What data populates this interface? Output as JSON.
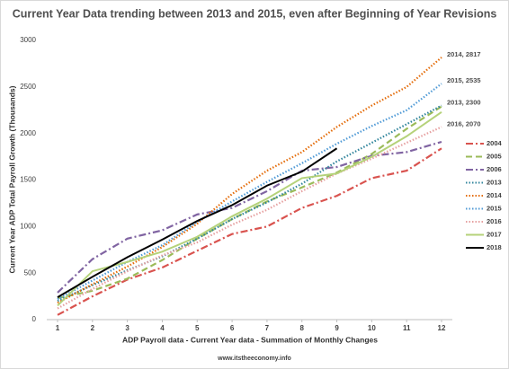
{
  "chart_data": {
    "type": "line",
    "title": "Current Year Data trending between  2013 and 2015, even after Beginning of Year Revisions",
    "ylabel": "Current Year ADP Total Payroll Growth (Thousands)",
    "xlabel": "ADP Payroll data - Current Year data - Summation of Monthly Changes",
    "footer": "www.itstheeconomy.info",
    "x": [
      1,
      2,
      3,
      4,
      5,
      6,
      7,
      8,
      9,
      10,
      11,
      12
    ],
    "xlim": [
      1,
      12
    ],
    "xticks": [
      1,
      2,
      3,
      4,
      5,
      6,
      7,
      8,
      9,
      10,
      11,
      12
    ],
    "ylim": [
      0,
      3000
    ],
    "yticks": [
      0,
      500,
      1000,
      1500,
      2000,
      2500,
      3000
    ],
    "legend": "right",
    "series": [
      {
        "name": "2004",
        "color": "#d9534f",
        "dash": "dashdot",
        "values": [
          50,
          250,
          430,
          560,
          740,
          920,
          1000,
          1200,
          1330,
          1520,
          1600,
          1840
        ]
      },
      {
        "name": "2005",
        "color": "#9bbb59",
        "dash": "dash",
        "values": [
          230,
          310,
          440,
          640,
          870,
          1080,
          1270,
          1420,
          1580,
          1780,
          2050,
          2290
        ]
      },
      {
        "name": "2006",
        "color": "#8064a2",
        "dash": "dashdot",
        "values": [
          290,
          650,
          870,
          960,
          1130,
          1200,
          1380,
          1600,
          1640,
          1760,
          1800,
          1910
        ]
      },
      {
        "name": "2013",
        "color": "#31859c",
        "dash": "dot",
        "label": "2013, 2300",
        "values": [
          200,
          370,
          530,
          680,
          870,
          1080,
          1260,
          1460,
          1700,
          1900,
          2100,
          2300
        ]
      },
      {
        "name": "2014",
        "color": "#e46c0a",
        "dash": "dot",
        "label": "2014, 2817",
        "values": [
          180,
          380,
          570,
          780,
          1030,
          1350,
          1600,
          1800,
          2070,
          2300,
          2500,
          2817
        ]
      },
      {
        "name": "2015",
        "color": "#4f9ad6",
        "dash": "dot",
        "label": "2015, 2535",
        "values": [
          220,
          420,
          620,
          800,
          1050,
          1270,
          1480,
          1680,
          1890,
          2080,
          2250,
          2535
        ]
      },
      {
        "name": "2016",
        "color": "#e6a0a0",
        "dash": "dot",
        "label": "2016, 2070",
        "values": [
          120,
          330,
          520,
          690,
          830,
          1020,
          1180,
          1380,
          1570,
          1730,
          1900,
          2070
        ]
      },
      {
        "name": "2017",
        "color": "#b5d27a",
        "dash": "solid",
        "values": [
          150,
          520,
          620,
          730,
          890,
          1110,
          1300,
          1520,
          1570,
          1750,
          1970,
          2230
        ]
      },
      {
        "name": "2018",
        "color": "#000000",
        "dash": "solid",
        "values": [
          240,
          460,
          670,
          860,
          1060,
          1230,
          1440,
          1590,
          1840,
          null,
          null,
          null
        ]
      }
    ]
  }
}
